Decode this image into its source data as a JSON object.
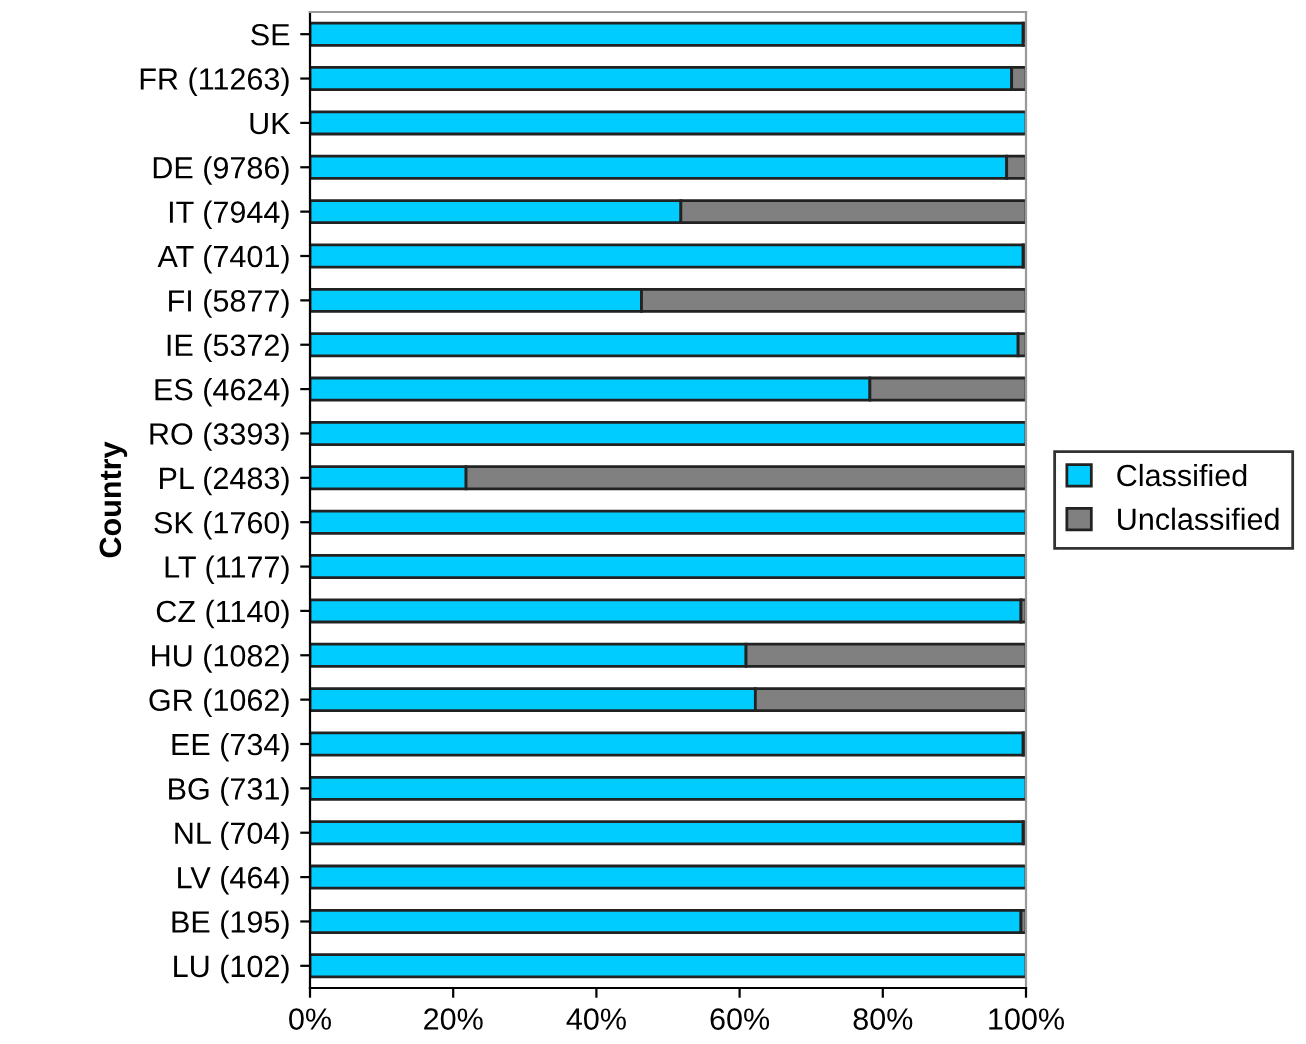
{
  "chart_data": {
    "type": "bar",
    "orientation": "horizontal",
    "stacked": true,
    "ylabel": "Country",
    "categories": [
      "SE",
      "FR (11263)",
      "UK",
      "DE (9786)",
      "IT (7944)",
      "AT (7401)",
      "FI (5877)",
      "IE (5372)",
      "ES (4624)",
      "RO (3393)",
      "PL (2483)",
      "SK (1760)",
      "LT (1177)",
      "CZ (1140)",
      "HU (1082)",
      "GR (1062)",
      "EE (734)",
      "BG (731)",
      "NL (704)",
      "LV (464)",
      "BE (195)",
      "LU (102)"
    ],
    "series": [
      {
        "name": "Classified",
        "color": "#00ccff",
        "values": [
          99.6,
          98,
          100,
          97.3,
          51.8,
          99.6,
          46.3,
          98.9,
          78.2,
          100,
          21.8,
          100,
          100,
          99.3,
          60.9,
          62.2,
          99.6,
          100,
          99.6,
          100,
          99.3,
          100
        ]
      },
      {
        "name": "Unclassified",
        "color": "#808080",
        "values": [
          0.4,
          2,
          0,
          2.7,
          48.2,
          0.4,
          53.7,
          1.1,
          21.8,
          0,
          78.2,
          0,
          0,
          0.7,
          39.1,
          37.8,
          0.4,
          0,
          0.4,
          0,
          0.7,
          0
        ]
      }
    ],
    "xlim": [
      0,
      100
    ],
    "xticks": [
      {
        "value": 0,
        "label": "0%"
      },
      {
        "value": 20,
        "label": "20%"
      },
      {
        "value": 40,
        "label": "40%"
      },
      {
        "value": 60,
        "label": "60%"
      },
      {
        "value": 80,
        "label": "80%"
      },
      {
        "value": 100,
        "label": "100%"
      }
    ],
    "grid": false,
    "legend": "right"
  }
}
